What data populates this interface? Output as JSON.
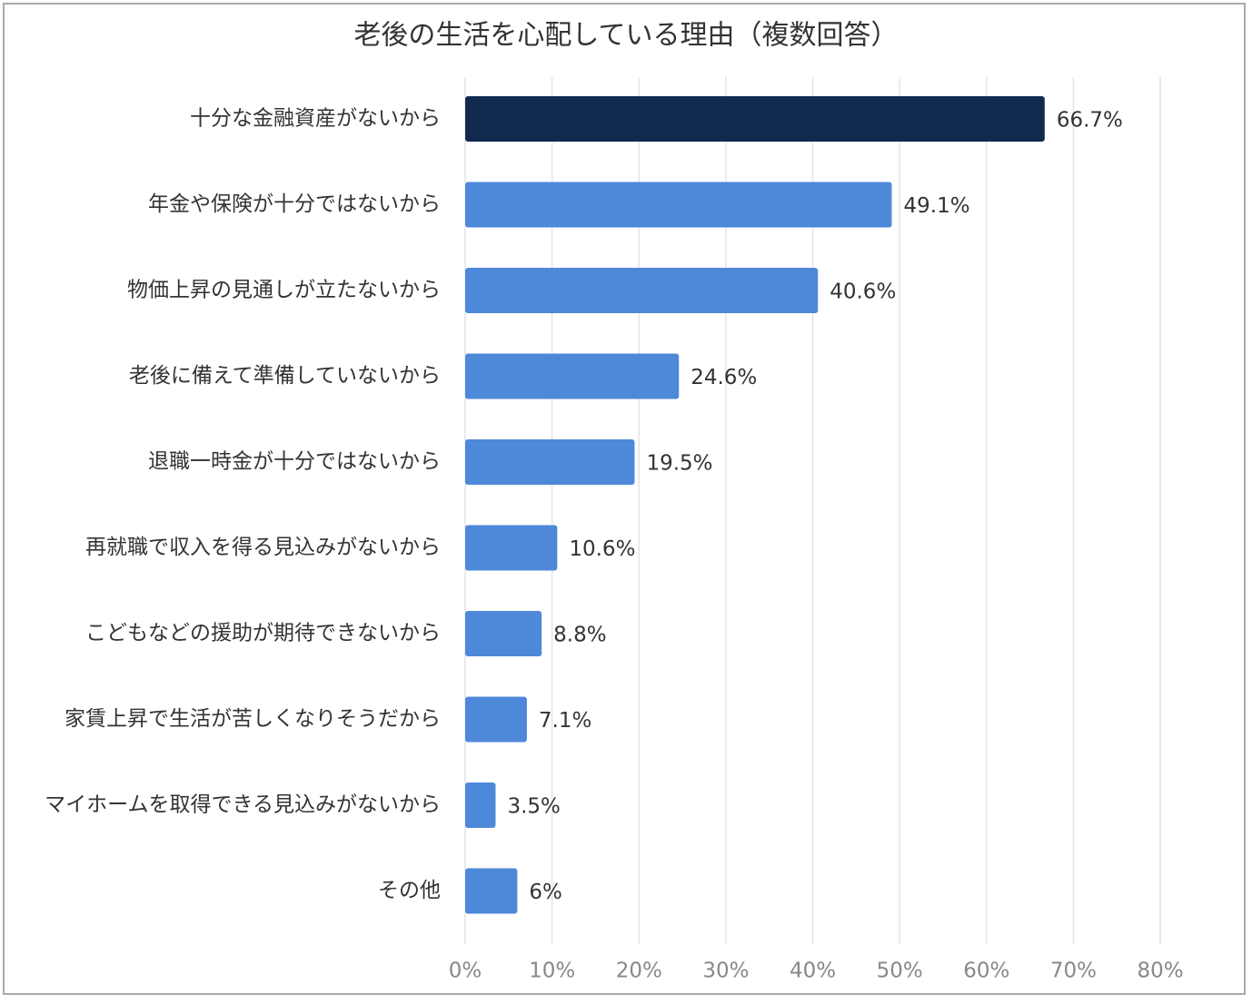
{
  "chart_data": {
    "type": "bar",
    "orientation": "horizontal",
    "title": "老後の生活を心配している理由（複数回答）",
    "categories": [
      "十分な金融資産がないから",
      "年金や保険が十分ではないから",
      "物価上昇の見通しが立たないから",
      "老後に備えて準備していないから",
      "退職一時金が十分ではないから",
      "再就職で収入を得る見込みがないから",
      "こどもなどの援助が期待できないから",
      "家賃上昇で生活が苦しくなりそうだから",
      "マイホームを取得できる見込みがないから",
      "その他"
    ],
    "values": [
      66.7,
      49.1,
      40.6,
      24.6,
      19.5,
      10.6,
      8.8,
      7.1,
      3.5,
      6
    ],
    "value_labels": [
      "66.7%",
      "49.1%",
      "40.6%",
      "24.6%",
      "19.5%",
      "10.6%",
      "8.8%",
      "7.1%",
      "3.5%",
      "6%"
    ],
    "colors": [
      "#12294f",
      "#4e88d9",
      "#4e88d9",
      "#4e88d9",
      "#4e88d9",
      "#4e88d9",
      "#4e88d9",
      "#4e88d9",
      "#4e88d9",
      "#4e88d9"
    ],
    "xlim": [
      0,
      80
    ],
    "xticks": [
      {
        "value": 0,
        "label": "0%"
      },
      {
        "value": 10,
        "label": "10%"
      },
      {
        "value": 20,
        "label": "20%"
      },
      {
        "value": 30,
        "label": "30%"
      },
      {
        "value": 40,
        "label": "40%"
      },
      {
        "value": 50,
        "label": "50%"
      },
      {
        "value": 60,
        "label": "60%"
      },
      {
        "value": 70,
        "label": "70%"
      },
      {
        "value": 80,
        "label": "80%"
      }
    ],
    "grid": true
  }
}
